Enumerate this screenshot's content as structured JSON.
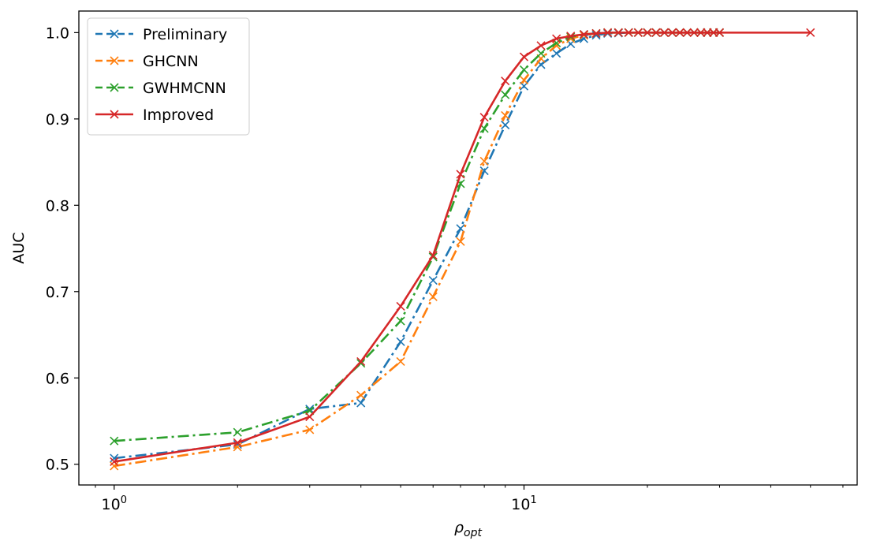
{
  "chart_data": {
    "type": "line",
    "xlabel_base": "ρ",
    "xlabel_sub": "opt",
    "ylabel": "AUC",
    "xscale": "log",
    "xlim": [
      0.82,
      65
    ],
    "ylim": [
      0.476,
      1.025
    ],
    "xticks": [
      {
        "value": 1,
        "base": "10",
        "exp": "0"
      },
      {
        "value": 10,
        "base": "10",
        "exp": "1"
      }
    ],
    "yticks": [
      {
        "value": 0.5,
        "label": "0.5"
      },
      {
        "value": 0.6,
        "label": "0.6"
      },
      {
        "value": 0.7,
        "label": "0.7"
      },
      {
        "value": 0.8,
        "label": "0.8"
      },
      {
        "value": 0.9,
        "label": "0.9"
      },
      {
        "value": 1.0,
        "label": "1.0"
      }
    ],
    "grid": false,
    "legend_position": "top-left",
    "series": [
      {
        "name": "Preliminary",
        "color": "#1f77b4",
        "dash": "14,5,3,5",
        "x": [
          1,
          2,
          3,
          4,
          5,
          6,
          7,
          8,
          9,
          10,
          11,
          12,
          13,
          14,
          15,
          16,
          17,
          18,
          19,
          20,
          21,
          22,
          23,
          24,
          25,
          26,
          27,
          28,
          29,
          30
        ],
        "y": [
          0.507,
          0.523,
          0.564,
          0.571,
          0.642,
          0.713,
          0.773,
          0.84,
          0.893,
          0.938,
          0.963,
          0.976,
          0.987,
          0.993,
          0.997,
          0.999,
          0.9995,
          1.0,
          1.0,
          1.0,
          1.0,
          1.0,
          1.0,
          1.0,
          1.0,
          1.0,
          1.0,
          1.0,
          1.0,
          1.0
        ]
      },
      {
        "name": "GHCNN",
        "color": "#ff7f0e",
        "dash": "14,5,3,5",
        "x": [
          1,
          2,
          3,
          4,
          5,
          6,
          7,
          8,
          9,
          10,
          11,
          12,
          13,
          14,
          15,
          16,
          17,
          18,
          19,
          20,
          21,
          22,
          23,
          24,
          25,
          26,
          27,
          28,
          29,
          30
        ],
        "y": [
          0.498,
          0.52,
          0.54,
          0.58,
          0.619,
          0.694,
          0.758,
          0.851,
          0.904,
          0.945,
          0.97,
          0.985,
          0.993,
          0.997,
          0.999,
          1.0,
          1.0,
          1.0,
          1.0,
          1.0,
          1.0,
          1.0,
          1.0,
          1.0,
          1.0,
          1.0,
          1.0,
          1.0,
          1.0,
          1.0
        ]
      },
      {
        "name": "GWHMCNN",
        "color": "#2ca02c",
        "dash": "14,5,3,5",
        "x": [
          1,
          2,
          3,
          4,
          5,
          6,
          7,
          8,
          9,
          10,
          11,
          12,
          13,
          14,
          15,
          16,
          17,
          18,
          19,
          20,
          21,
          22,
          23,
          24,
          25,
          26,
          27,
          28,
          29,
          30
        ],
        "y": [
          0.527,
          0.537,
          0.562,
          0.617,
          0.666,
          0.74,
          0.825,
          0.889,
          0.928,
          0.957,
          0.976,
          0.988,
          0.995,
          0.998,
          0.999,
          1.0,
          1.0,
          1.0,
          1.0,
          1.0,
          1.0,
          1.0,
          1.0,
          1.0,
          1.0,
          1.0,
          1.0,
          1.0,
          1.0,
          1.0
        ]
      },
      {
        "name": "Improved",
        "color": "#d62728",
        "dash": "",
        "x": [
          1,
          2,
          3,
          4,
          5,
          6,
          7,
          8,
          9,
          10,
          11,
          12,
          13,
          14,
          15,
          16,
          17,
          18,
          19,
          20,
          21,
          22,
          23,
          24,
          25,
          26,
          27,
          28,
          29,
          30,
          50
        ],
        "y": [
          0.503,
          0.525,
          0.555,
          0.619,
          0.683,
          0.742,
          0.836,
          0.902,
          0.944,
          0.972,
          0.985,
          0.993,
          0.996,
          0.998,
          0.999,
          1.0,
          1.0,
          1.0,
          1.0,
          1.0,
          1.0,
          1.0,
          1.0,
          1.0,
          1.0,
          1.0,
          1.0,
          1.0,
          1.0,
          1.0,
          1.0
        ]
      }
    ]
  }
}
